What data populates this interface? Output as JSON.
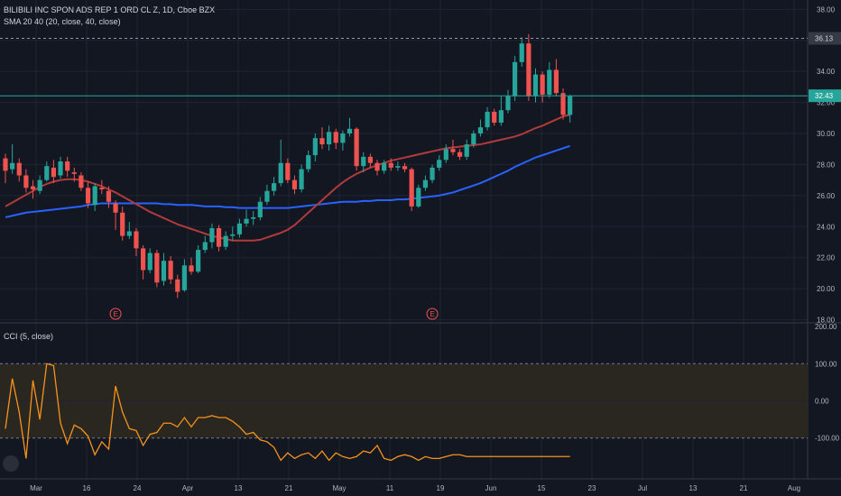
{
  "legend": {
    "symbol": "BILIBILI INC SPON ADS REP 1 ORD CL Z, 1D, Cboe BZX",
    "sma": "SMA 20 40 (20, close, 40, close)",
    "cci": "CCI (5, close)"
  },
  "colors": {
    "background": "#131722",
    "grid": "#1f2433",
    "up": "#26a69a",
    "down": "#ef5350",
    "sma20": "#b23a3a",
    "sma40": "#2962ff",
    "cci": "#f7931a",
    "band": "#2a2721",
    "axis_text": "#b2b5be"
  },
  "chart_data": [
    {
      "type": "candlestick",
      "price_axis": {
        "ylim": [
          17.8,
          38.6
        ],
        "ticks": [
          "18.00",
          "20.00",
          "22.00",
          "24.00",
          "26.00",
          "28.00",
          "30.00",
          "32.00",
          "34.00",
          "36.00",
          "38.00"
        ]
      },
      "time_axis": {
        "ticks": [
          "Mar",
          "16",
          "24",
          "Apr",
          "13",
          "21",
          "May",
          "11",
          "19",
          "Jun",
          "15",
          "23",
          "Jul",
          "13",
          "21",
          "Aug"
        ]
      },
      "price_labels": [
        {
          "value": 36.13,
          "label": "36.13",
          "style": "dashed"
        },
        {
          "value": 32.43,
          "label": "32.43",
          "style": "last"
        }
      ],
      "earnings_markers": [
        {
          "at": 16,
          "label": "E"
        },
        {
          "at": 62,
          "label": "E"
        }
      ],
      "candles": [
        [
          28.4,
          27.6,
          28.7,
          26.8
        ],
        [
          27.7,
          28.1,
          29.3,
          27.4
        ],
        [
          28.1,
          27.3,
          28.4,
          26.9
        ],
        [
          27.3,
          26.5,
          27.7,
          26.2
        ],
        [
          26.6,
          26.4,
          27.0,
          25.8
        ],
        [
          26.3,
          27.0,
          27.3,
          26.1
        ],
        [
          27.0,
          27.9,
          28.2,
          26.9
        ],
        [
          27.8,
          27.2,
          28.3,
          26.8
        ],
        [
          27.3,
          28.2,
          28.5,
          27.1
        ],
        [
          28.2,
          27.6,
          28.5,
          27.2
        ],
        [
          27.5,
          27.4,
          27.8,
          26.9
        ],
        [
          27.3,
          26.5,
          27.5,
          26.3
        ],
        [
          26.5,
          25.5,
          26.9,
          25.2
        ],
        [
          25.4,
          26.6,
          26.8,
          25.0
        ],
        [
          26.5,
          26.4,
          27.0,
          26.1
        ],
        [
          26.3,
          25.6,
          26.6,
          25.2
        ],
        [
          25.5,
          24.9,
          25.7,
          23.8
        ],
        [
          24.9,
          23.4,
          25.3,
          23.1
        ],
        [
          23.4,
          23.7,
          24.3,
          23.2
        ],
        [
          23.7,
          22.6,
          23.9,
          22.1
        ],
        [
          22.6,
          21.2,
          22.8,
          20.6
        ],
        [
          21.2,
          22.3,
          22.6,
          21.0
        ],
        [
          22.3,
          20.4,
          22.5,
          20.1
        ],
        [
          20.5,
          21.8,
          22.3,
          20.2
        ],
        [
          21.8,
          20.6,
          22.1,
          20.3
        ],
        [
          20.6,
          19.8,
          20.9,
          19.4
        ],
        [
          19.9,
          21.5,
          21.9,
          19.8
        ],
        [
          21.5,
          21.1,
          22.0,
          20.9
        ],
        [
          21.1,
          22.5,
          22.8,
          21.0
        ],
        [
          22.5,
          23.0,
          23.4,
          22.3
        ],
        [
          23.0,
          23.9,
          24.2,
          22.6
        ],
        [
          23.9,
          22.7,
          24.1,
          22.4
        ],
        [
          22.7,
          23.4,
          23.7,
          22.5
        ],
        [
          23.4,
          23.5,
          24.0,
          23.1
        ],
        [
          23.5,
          24.2,
          24.5,
          23.3
        ],
        [
          24.2,
          24.5,
          25.1,
          24.0
        ],
        [
          24.5,
          24.6,
          25.0,
          24.1
        ],
        [
          24.6,
          25.6,
          25.9,
          24.4
        ],
        [
          25.6,
          26.3,
          26.7,
          25.4
        ],
        [
          26.3,
          26.8,
          27.2,
          26.0
        ],
        [
          26.8,
          28.1,
          29.6,
          26.6
        ],
        [
          28.1,
          27.0,
          28.4,
          26.8
        ],
        [
          27.0,
          26.4,
          27.3,
          26.1
        ],
        [
          26.4,
          27.7,
          28.0,
          26.2
        ],
        [
          27.7,
          28.6,
          28.9,
          27.5
        ],
        [
          28.6,
          29.7,
          30.0,
          28.2
        ],
        [
          29.7,
          29.3,
          30.4,
          29.0
        ],
        [
          29.3,
          30.1,
          30.5,
          28.9
        ],
        [
          30.1,
          29.4,
          30.3,
          29.0
        ],
        [
          29.4,
          30.0,
          30.2,
          28.9
        ],
        [
          30.0,
          30.3,
          31.0,
          29.8
        ],
        [
          30.3,
          27.9,
          30.4,
          27.6
        ],
        [
          27.9,
          28.5,
          28.8,
          27.5
        ],
        [
          28.5,
          28.1,
          28.7,
          27.8
        ],
        [
          28.1,
          27.6,
          28.3,
          27.3
        ],
        [
          27.6,
          28.1,
          28.3,
          27.4
        ],
        [
          28.1,
          27.8,
          28.4,
          27.6
        ],
        [
          27.8,
          27.9,
          28.2,
          27.6
        ],
        [
          27.9,
          27.7,
          28.1,
          27.5
        ],
        [
          27.7,
          25.3,
          27.8,
          25.0
        ],
        [
          25.3,
          26.5,
          26.7,
          25.2
        ],
        [
          26.5,
          27.0,
          27.3,
          26.3
        ],
        [
          27.0,
          27.8,
          28.0,
          26.8
        ],
        [
          27.8,
          28.3,
          28.6,
          27.6
        ],
        [
          28.3,
          29.0,
          29.3,
          28.1
        ],
        [
          29.0,
          28.8,
          29.6,
          28.6
        ],
        [
          28.8,
          28.5,
          29.0,
          28.3
        ],
        [
          28.5,
          29.3,
          29.6,
          28.3
        ],
        [
          29.3,
          30.0,
          30.2,
          29.1
        ],
        [
          30.0,
          30.4,
          30.9,
          29.8
        ],
        [
          30.4,
          31.4,
          31.7,
          30.2
        ],
        [
          31.4,
          30.7,
          31.6,
          30.5
        ],
        [
          30.7,
          31.5,
          32.4,
          30.5
        ],
        [
          31.5,
          32.4,
          32.8,
          31.3
        ],
        [
          32.4,
          34.6,
          35.0,
          32.1
        ],
        [
          34.6,
          35.8,
          36.2,
          34.3
        ],
        [
          35.8,
          32.4,
          36.4,
          32.1
        ],
        [
          32.4,
          33.8,
          34.2,
          32.0
        ],
        [
          33.8,
          32.5,
          34.0,
          32.0
        ],
        [
          32.5,
          34.1,
          34.6,
          32.3
        ],
        [
          34.1,
          32.6,
          34.8,
          32.4
        ],
        [
          32.6,
          31.2,
          32.9,
          30.9
        ],
        [
          31.2,
          32.4,
          32.5,
          30.7
        ]
      ],
      "sma20": [
        25.3,
        25.55,
        25.8,
        26.05,
        26.3,
        26.55,
        26.75,
        26.9,
        27.0,
        27.05,
        27.05,
        27.0,
        26.9,
        26.75,
        26.6,
        26.4,
        26.2,
        25.95,
        25.7,
        25.45,
        25.2,
        24.95,
        24.75,
        24.55,
        24.35,
        24.15,
        24.0,
        23.85,
        23.7,
        23.55,
        23.4,
        23.3,
        23.2,
        23.1,
        23.1,
        23.1,
        23.1,
        23.15,
        23.3,
        23.45,
        23.6,
        23.8,
        24.1,
        24.5,
        24.9,
        25.3,
        25.7,
        26.1,
        26.5,
        26.85,
        27.15,
        27.4,
        27.6,
        27.8,
        27.95,
        28.1,
        28.25,
        28.35,
        28.45,
        28.55,
        28.65,
        28.75,
        28.85,
        28.95,
        29.05,
        29.1,
        29.15,
        29.2,
        29.25,
        29.3,
        29.4,
        29.5,
        29.6,
        29.7,
        29.8,
        29.95,
        30.15,
        30.35,
        30.5,
        30.7,
        30.9,
        31.1,
        31.2
      ],
      "sma40": [
        24.6,
        24.7,
        24.8,
        24.9,
        24.95,
        25.0,
        25.05,
        25.1,
        25.15,
        25.2,
        25.25,
        25.3,
        25.4,
        25.45,
        25.5,
        25.5,
        25.5,
        25.5,
        25.5,
        25.5,
        25.5,
        25.5,
        25.5,
        25.45,
        25.45,
        25.4,
        25.4,
        25.4,
        25.35,
        25.3,
        25.3,
        25.3,
        25.25,
        25.25,
        25.2,
        25.2,
        25.2,
        25.2,
        25.2,
        25.2,
        25.2,
        25.2,
        25.25,
        25.3,
        25.35,
        25.4,
        25.45,
        25.5,
        25.55,
        25.6,
        25.6,
        25.6,
        25.65,
        25.65,
        25.7,
        25.7,
        25.7,
        25.75,
        25.75,
        25.8,
        25.85,
        25.9,
        25.95,
        26.0,
        26.1,
        26.2,
        26.35,
        26.5,
        26.65,
        26.8,
        27.0,
        27.2,
        27.4,
        27.6,
        27.85,
        28.05,
        28.25,
        28.45,
        28.6,
        28.75,
        28.9,
        29.05,
        29.2
      ]
    },
    {
      "type": "line",
      "name": "CCI",
      "ylim": [
        -210,
        210
      ],
      "ticks": [
        "200.00",
        "100.00",
        "0.00",
        "-100.00"
      ],
      "levels": [
        100,
        -100
      ],
      "values": [
        -75,
        60,
        -30,
        -155,
        55,
        -50,
        100,
        95,
        -60,
        -115,
        -65,
        -75,
        -95,
        -145,
        -110,
        -130,
        40,
        -30,
        -75,
        -80,
        -120,
        -90,
        -85,
        -60,
        -60,
        -70,
        -45,
        -70,
        -45,
        -45,
        -40,
        -45,
        -45,
        -55,
        -70,
        -90,
        -85,
        -105,
        -110,
        -125,
        -160,
        -140,
        -155,
        -145,
        -140,
        -155,
        -135,
        -160,
        -140,
        -150,
        -155,
        -150,
        -135,
        -140,
        -120,
        -155,
        -160,
        -150,
        -145,
        -150,
        -160,
        -150,
        -155,
        -155,
        -150,
        -145,
        -145,
        -150,
        -150,
        -150,
        -150,
        -150,
        -150,
        -150,
        -150,
        -150,
        -150,
        -150,
        -150,
        -150,
        -150,
        -150,
        -150
      ]
    }
  ]
}
